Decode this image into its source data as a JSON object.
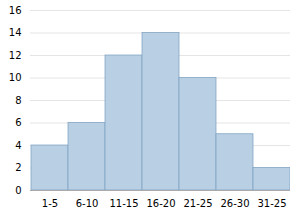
{
  "chart_data": {
    "type": "bar",
    "categories": [
      "1-5",
      "6-10",
      "11-15",
      "16-20",
      "21-25",
      "26-30",
      "31-25"
    ],
    "values": [
      4,
      6,
      12,
      14,
      10,
      5,
      2
    ],
    "color": "#b8cfe4",
    "ylim": [
      0,
      16
    ],
    "yticks": [
      0,
      2,
      4,
      6,
      8,
      10,
      12,
      14,
      16
    ],
    "grid": true
  }
}
